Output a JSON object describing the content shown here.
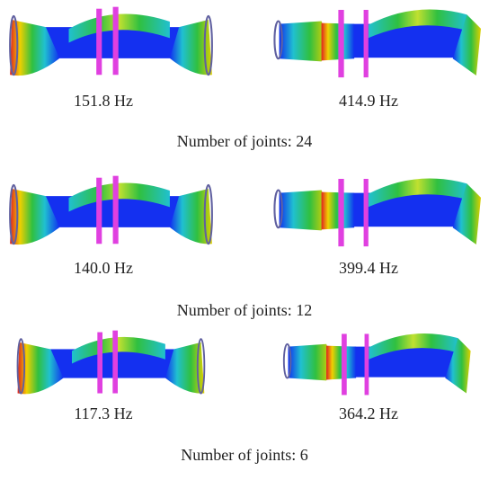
{
  "rows": [
    {
      "frequencies": [
        "151.8 Hz",
        "414.9 Hz"
      ],
      "caption": "Number of joints: 24"
    },
    {
      "frequencies": [
        "140.0 Hz",
        "399.4 Hz"
      ],
      "caption": "Number of joints: 12"
    },
    {
      "frequencies": [
        "117.3 Hz",
        "364.2 Hz"
      ],
      "caption": "Number of joints: 6"
    }
  ]
}
